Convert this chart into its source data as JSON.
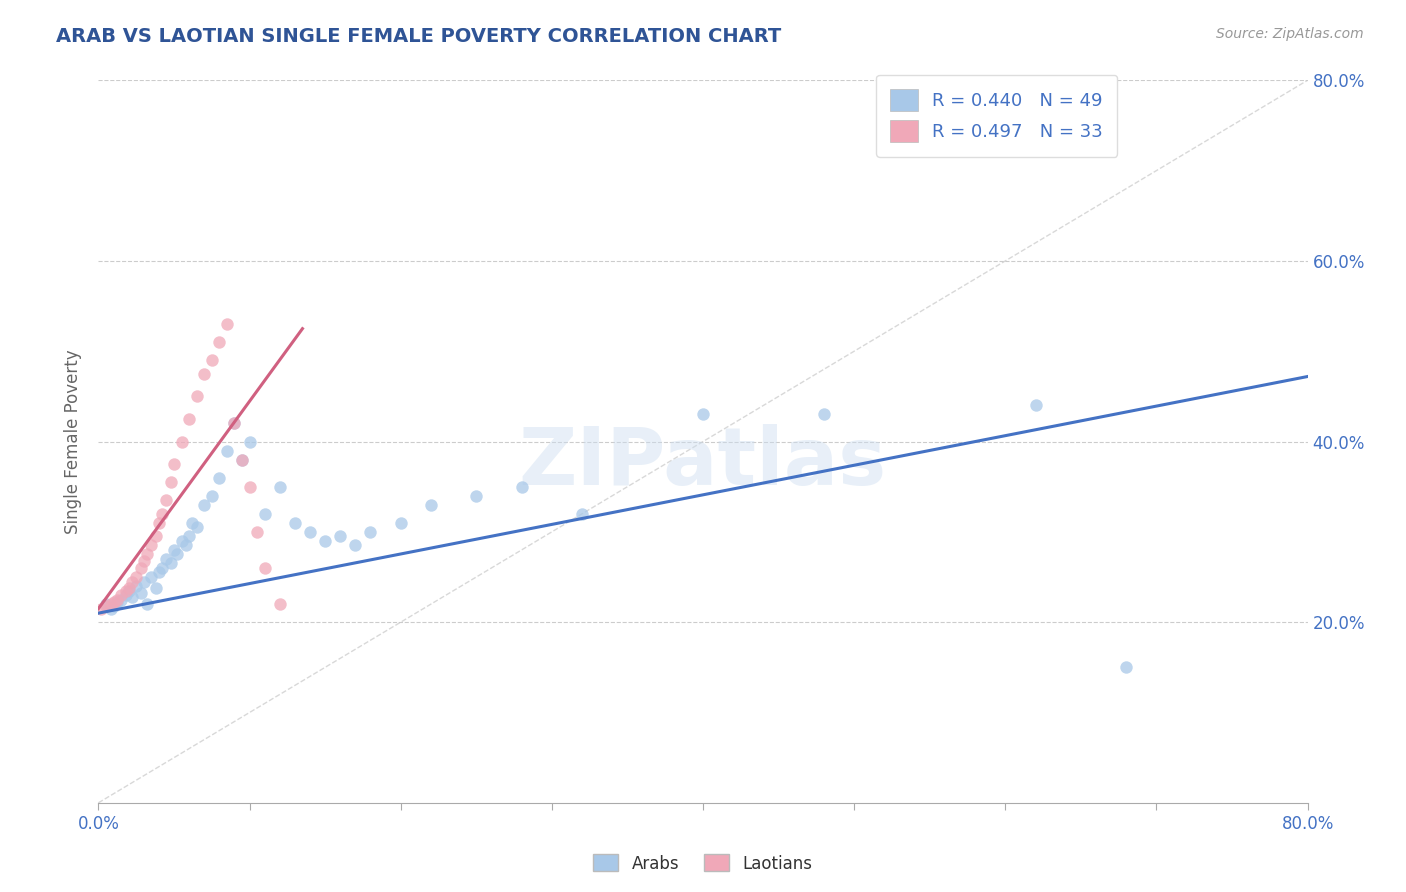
{
  "title": "ARAB VS LAOTIAN SINGLE FEMALE POVERTY CORRELATION CHART",
  "source": "Source: ZipAtlas.com",
  "ylabel": "Single Female Poverty",
  "xlim": [
    0.0,
    0.8
  ],
  "ylim": [
    0.0,
    0.8
  ],
  "arab_color": "#a8c8e8",
  "laotian_color": "#f0a8b8",
  "arab_line_color": "#4472c4",
  "laotian_line_color": "#d06080",
  "diagonal_color": "#c8c8c8",
  "R_arab": 0.44,
  "N_arab": 49,
  "R_laotian": 0.497,
  "N_laotian": 33,
  "legend_label_arab": "Arabs",
  "legend_label_laotian": "Laotians",
  "watermark": "ZIPatlas",
  "title_color": "#2f5496",
  "axis_label_color": "#4472c4",
  "legend_text_color": "#4472c4",
  "arab_line_x0": 0.0,
  "arab_line_y0": 0.21,
  "arab_line_x1": 0.8,
  "arab_line_y1": 0.472,
  "laotian_line_x0": 0.0,
  "laotian_line_y0": 0.215,
  "laotian_line_x1": 0.135,
  "laotian_line_y1": 0.525,
  "arab_x": [
    0.005,
    0.008,
    0.01,
    0.012,
    0.015,
    0.018,
    0.02,
    0.022,
    0.025,
    0.028,
    0.03,
    0.032,
    0.035,
    0.038,
    0.04,
    0.042,
    0.045,
    0.048,
    0.05,
    0.052,
    0.055,
    0.058,
    0.06,
    0.062,
    0.065,
    0.07,
    0.075,
    0.08,
    0.085,
    0.09,
    0.095,
    0.1,
    0.11,
    0.12,
    0.13,
    0.14,
    0.15,
    0.16,
    0.17,
    0.18,
    0.2,
    0.22,
    0.25,
    0.28,
    0.32,
    0.4,
    0.48,
    0.62,
    0.68
  ],
  "arab_y": [
    0.22,
    0.215,
    0.218,
    0.222,
    0.225,
    0.23,
    0.235,
    0.228,
    0.24,
    0.232,
    0.245,
    0.22,
    0.25,
    0.238,
    0.255,
    0.26,
    0.27,
    0.265,
    0.28,
    0.275,
    0.29,
    0.285,
    0.295,
    0.31,
    0.305,
    0.33,
    0.34,
    0.36,
    0.39,
    0.42,
    0.38,
    0.4,
    0.32,
    0.35,
    0.31,
    0.3,
    0.29,
    0.295,
    0.285,
    0.3,
    0.31,
    0.33,
    0.34,
    0.35,
    0.32,
    0.43,
    0.43,
    0.44,
    0.15
  ],
  "laotian_x": [
    0.002,
    0.005,
    0.008,
    0.01,
    0.012,
    0.015,
    0.018,
    0.02,
    0.022,
    0.025,
    0.028,
    0.03,
    0.032,
    0.035,
    0.038,
    0.04,
    0.042,
    0.045,
    0.048,
    0.05,
    0.055,
    0.06,
    0.065,
    0.07,
    0.075,
    0.08,
    0.085,
    0.09,
    0.095,
    0.1,
    0.105,
    0.11,
    0.12
  ],
  "laotian_y": [
    0.215,
    0.218,
    0.22,
    0.222,
    0.225,
    0.23,
    0.235,
    0.238,
    0.245,
    0.25,
    0.26,
    0.268,
    0.275,
    0.285,
    0.295,
    0.31,
    0.32,
    0.335,
    0.355,
    0.375,
    0.4,
    0.425,
    0.45,
    0.475,
    0.49,
    0.51,
    0.53,
    0.42,
    0.38,
    0.35,
    0.3,
    0.26,
    0.22
  ]
}
